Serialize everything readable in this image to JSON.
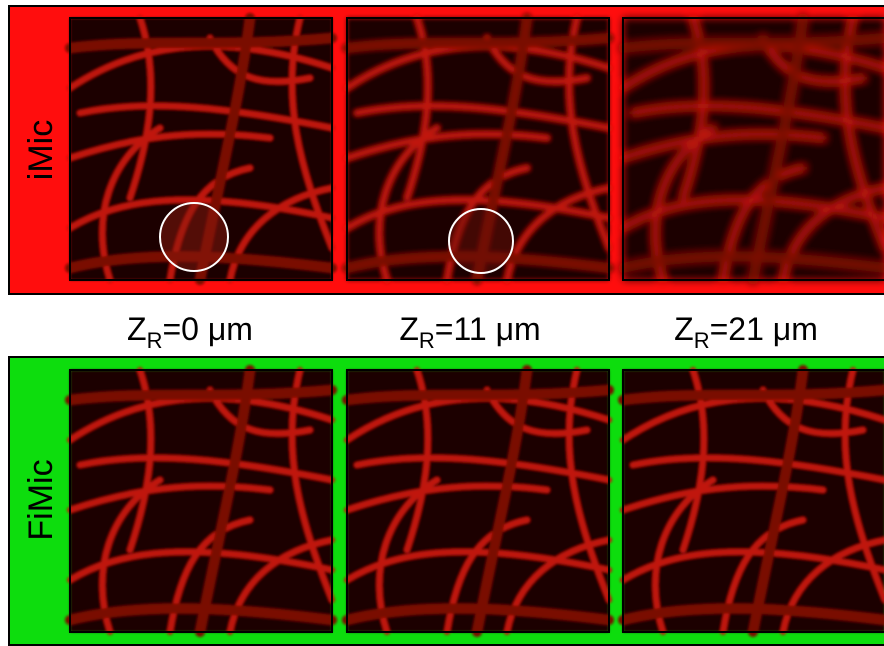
{
  "rows": [
    {
      "label": "iMic"
    },
    {
      "label": "FiMic"
    }
  ],
  "columns": [
    {
      "symbol": "Z",
      "subscript": "R",
      "value": "=0 μm"
    },
    {
      "symbol": "Z",
      "subscript": "R",
      "value": "=11 μm"
    },
    {
      "symbol": "Z",
      "subscript": "R",
      "value": "=21 μm"
    }
  ]
}
